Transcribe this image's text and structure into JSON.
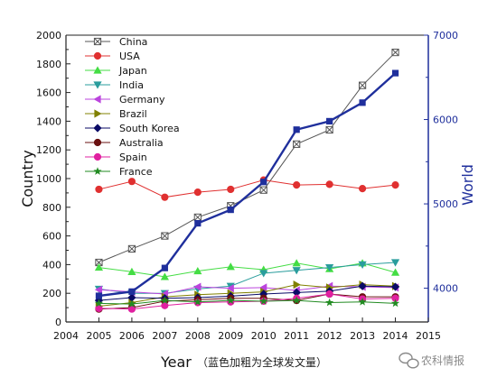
{
  "chart_data": {
    "type": "line",
    "xlabel": "Year",
    "xlabel_note": "（蓝色加粗为全球发文量）",
    "ylabel": "Country",
    "y2label": "World",
    "xlim": [
      2004,
      2015
    ],
    "xticks": [
      2004,
      2005,
      2006,
      2007,
      2008,
      2009,
      2010,
      2011,
      2012,
      2013,
      2014,
      2015
    ],
    "ylim": [
      0,
      2000
    ],
    "yticks": [
      0,
      200,
      400,
      600,
      800,
      1000,
      1200,
      1400,
      1600,
      1800,
      2000
    ],
    "y2lim": [
      3600,
      7000
    ],
    "y2ticks": [
      4000,
      5000,
      6000,
      7000
    ],
    "legend_position": "top-left",
    "x": [
      2005,
      2006,
      2007,
      2008,
      2009,
      2010,
      2011,
      2012,
      2013,
      2014
    ],
    "series": [
      {
        "name": "China",
        "color": "#555555",
        "marker": "square-x",
        "axis": "left",
        "values": [
          415,
          510,
          600,
          730,
          810,
          920,
          1240,
          1340,
          1650,
          1880
        ]
      },
      {
        "name": "USA",
        "color": "#e03030",
        "marker": "circle",
        "axis": "left",
        "values": [
          925,
          980,
          870,
          905,
          925,
          990,
          955,
          960,
          930,
          955
        ]
      },
      {
        "name": "Japan",
        "color": "#44dd44",
        "marker": "triangle-up",
        "axis": "left",
        "values": [
          380,
          350,
          315,
          355,
          385,
          365,
          410,
          370,
          410,
          345
        ]
      },
      {
        "name": "India",
        "color": "#2a9d9d",
        "marker": "triangle-down",
        "axis": "left",
        "values": [
          230,
          200,
          200,
          230,
          250,
          340,
          360,
          380,
          400,
          415
        ]
      },
      {
        "name": "Germany",
        "color": "#bb44dd",
        "marker": "triangle-left",
        "axis": "left",
        "values": [
          225,
          210,
          195,
          245,
          235,
          240,
          220,
          250,
          245,
          240
        ]
      },
      {
        "name": "Brazil",
        "color": "#808000",
        "marker": "triangle-right",
        "axis": "left",
        "values": [
          110,
          135,
          175,
          190,
          200,
          210,
          260,
          240,
          260,
          250
        ]
      },
      {
        "name": "South Korea",
        "color": "#0a0a66",
        "marker": "diamond",
        "axis": "left",
        "values": [
          150,
          170,
          165,
          170,
          180,
          195,
          205,
          215,
          250,
          245
        ]
      },
      {
        "name": "Australia",
        "color": "#6a1010",
        "marker": "circle",
        "axis": "left",
        "values": [
          90,
          100,
          145,
          155,
          165,
          165,
          150,
          195,
          175,
          175
        ]
      },
      {
        "name": "Spain",
        "color": "#e020a0",
        "marker": "circle",
        "axis": "left",
        "values": [
          95,
          90,
          115,
          135,
          140,
          145,
          165,
          195,
          160,
          165
        ]
      },
      {
        "name": "France",
        "color": "#228b22",
        "marker": "star",
        "axis": "left",
        "values": [
          130,
          125,
          150,
          140,
          150,
          145,
          150,
          135,
          140,
          130
        ]
      },
      {
        "name": "World",
        "color": "#1f2f9c",
        "marker": "square",
        "axis": "right",
        "thick": true,
        "values": [
          3910,
          3960,
          4240,
          4770,
          4930,
          5260,
          5880,
          5980,
          6200,
          6550
        ]
      }
    ]
  },
  "watermark": "农科情报"
}
